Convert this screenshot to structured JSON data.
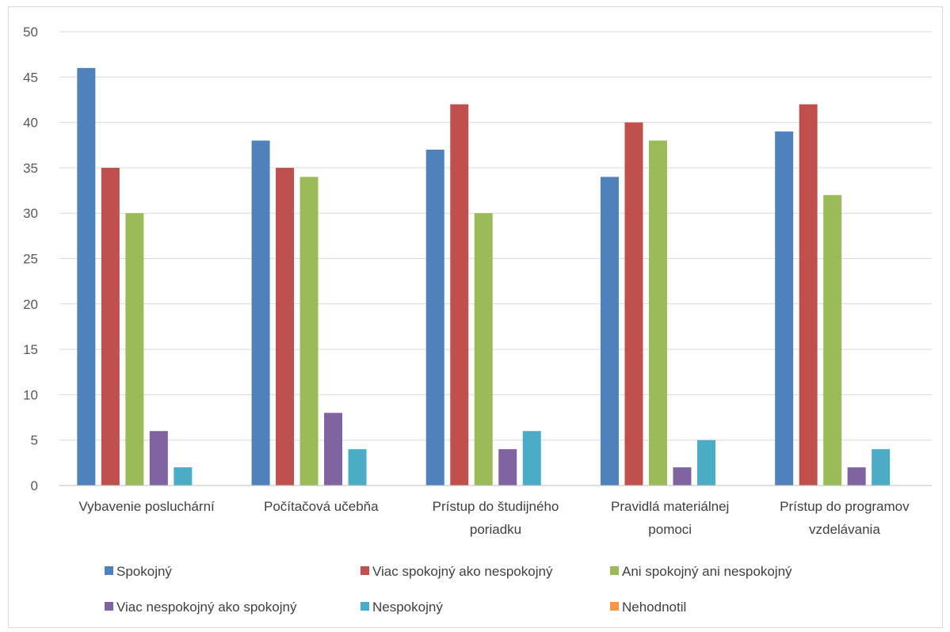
{
  "chart_data": {
    "type": "bar",
    "categories": [
      [
        "Vybavenie posluchární"
      ],
      [
        "Počítačová učebňa"
      ],
      [
        "Prístup do študijného",
        "poriadku"
      ],
      [
        "Pravidlá materiálnej",
        "pomoci"
      ],
      [
        "Prístup do programov",
        "vzdelávania"
      ]
    ],
    "series": [
      {
        "name": "Spokojný",
        "color": "#4f81bd",
        "values": [
          46,
          38,
          37,
          34,
          39
        ]
      },
      {
        "name": "Viac spokojný ako nespokojný",
        "color": "#c0504d",
        "values": [
          35,
          35,
          42,
          40,
          42
        ]
      },
      {
        "name": "Ani spokojný ani nespokojný",
        "color": "#9bbb59",
        "values": [
          30,
          34,
          30,
          38,
          32
        ]
      },
      {
        "name": "Viac nespokojný ako spokojný",
        "color": "#8064a2",
        "values": [
          6,
          8,
          4,
          2,
          2
        ]
      },
      {
        "name": "Nespokojný",
        "color": "#4bacc6",
        "values": [
          2,
          4,
          6,
          5,
          4
        ]
      },
      {
        "name": "Nehodnotil",
        "color": "#f79646",
        "values": [
          0,
          0,
          0,
          0,
          0
        ]
      }
    ],
    "ylim": [
      0,
      50
    ],
    "yticks": [
      0,
      5,
      10,
      15,
      20,
      25,
      30,
      35,
      40,
      45,
      50
    ],
    "grid": true,
    "legend": "bottom"
  }
}
